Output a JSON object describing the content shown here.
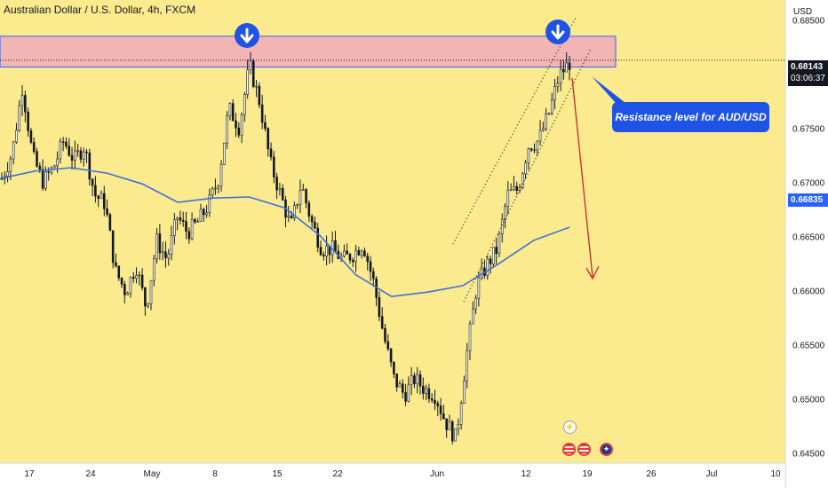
{
  "header": {
    "title": "Australian Dollar / U.S. Dollar, 4h, FXCM",
    "currency": "USD"
  },
  "colors": {
    "background": "#fbeb8e",
    "resistance": "#f3b4b4",
    "resistance_border": "#2962ff",
    "ma": "#3d6fd9",
    "arrow": "#c62828",
    "callout": "#1e53e5",
    "candle": "#131722",
    "price_tag": "#131722",
    "ma_tag": "#2962ff"
  },
  "price_tags": {
    "last": "0.68143",
    "countdown": "03:06:37",
    "ma_value": "0.66835"
  },
  "annotation": {
    "callout_text": "Resistance level for AUD/USD",
    "marker_icon": "arrow-down-circle-icon",
    "events": [
      "lightning-icon",
      "us-flag-icon",
      "us-flag-icon",
      "au-flag-icon"
    ]
  },
  "chart_data": {
    "type": "candlestick",
    "symbol": "AUD/USD",
    "interval": "4h",
    "ylim": [
      0.6442,
      0.687
    ],
    "yticks": [
      "0.68500",
      "0.68000",
      "0.67500",
      "0.67000",
      "0.66500",
      "0.66000",
      "0.65500",
      "0.65000",
      "0.64500"
    ],
    "xticks": [
      "17",
      "24",
      "May",
      "8",
      "15",
      "22",
      "Jun",
      "12",
      "19",
      "26",
      "Jul",
      "10"
    ],
    "close_path": [
      0.6705,
      0.6728,
      0.679,
      0.6725,
      0.6702,
      0.6715,
      0.674,
      0.6722,
      0.6735,
      0.669,
      0.6682,
      0.662,
      0.66,
      0.6625,
      0.6585,
      0.6648,
      0.663,
      0.667,
      0.6655,
      0.6665,
      0.668,
      0.6705,
      0.677,
      0.6752,
      0.681,
      0.6775,
      0.672,
      0.669,
      0.666,
      0.67,
      0.6665,
      0.664,
      0.664,
      0.663,
      0.6635,
      0.6645,
      0.661,
      0.656,
      0.652,
      0.6505,
      0.652,
      0.651,
      0.6505,
      0.648,
      0.6465,
      0.654,
      0.6605,
      0.6625,
      0.664,
      0.669,
      0.6695,
      0.6735,
      0.674,
      0.6765,
      0.68,
      0.6812
    ],
    "ma_path": [
      0.6705,
      0.6712,
      0.6715,
      0.671,
      0.67,
      0.6683,
      0.6687,
      0.6688,
      0.6678,
      0.6652,
      0.6616,
      0.6596,
      0.66,
      0.6606,
      0.6626,
      0.6648,
      0.666
    ],
    "resistance_zone": [
      0.6808,
      0.68365
    ],
    "last_price": 0.68143,
    "ma_last": 0.66835,
    "annotations": [
      "Resistance level for AUD/USD"
    ]
  }
}
